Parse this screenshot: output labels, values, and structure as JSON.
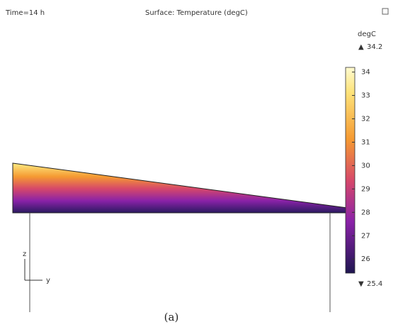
{
  "header": {
    "time": "Time=14 h",
    "title": "Surface: Temperature (degC)"
  },
  "colorbar": {
    "unit": "degC",
    "max": 34.2,
    "min": 25.4,
    "ticks": [
      26,
      27,
      28,
      29,
      30,
      31,
      32,
      33,
      34
    ]
  },
  "axes": {
    "vertical": "z",
    "horizontal": "y"
  },
  "caption": "(a)"
}
